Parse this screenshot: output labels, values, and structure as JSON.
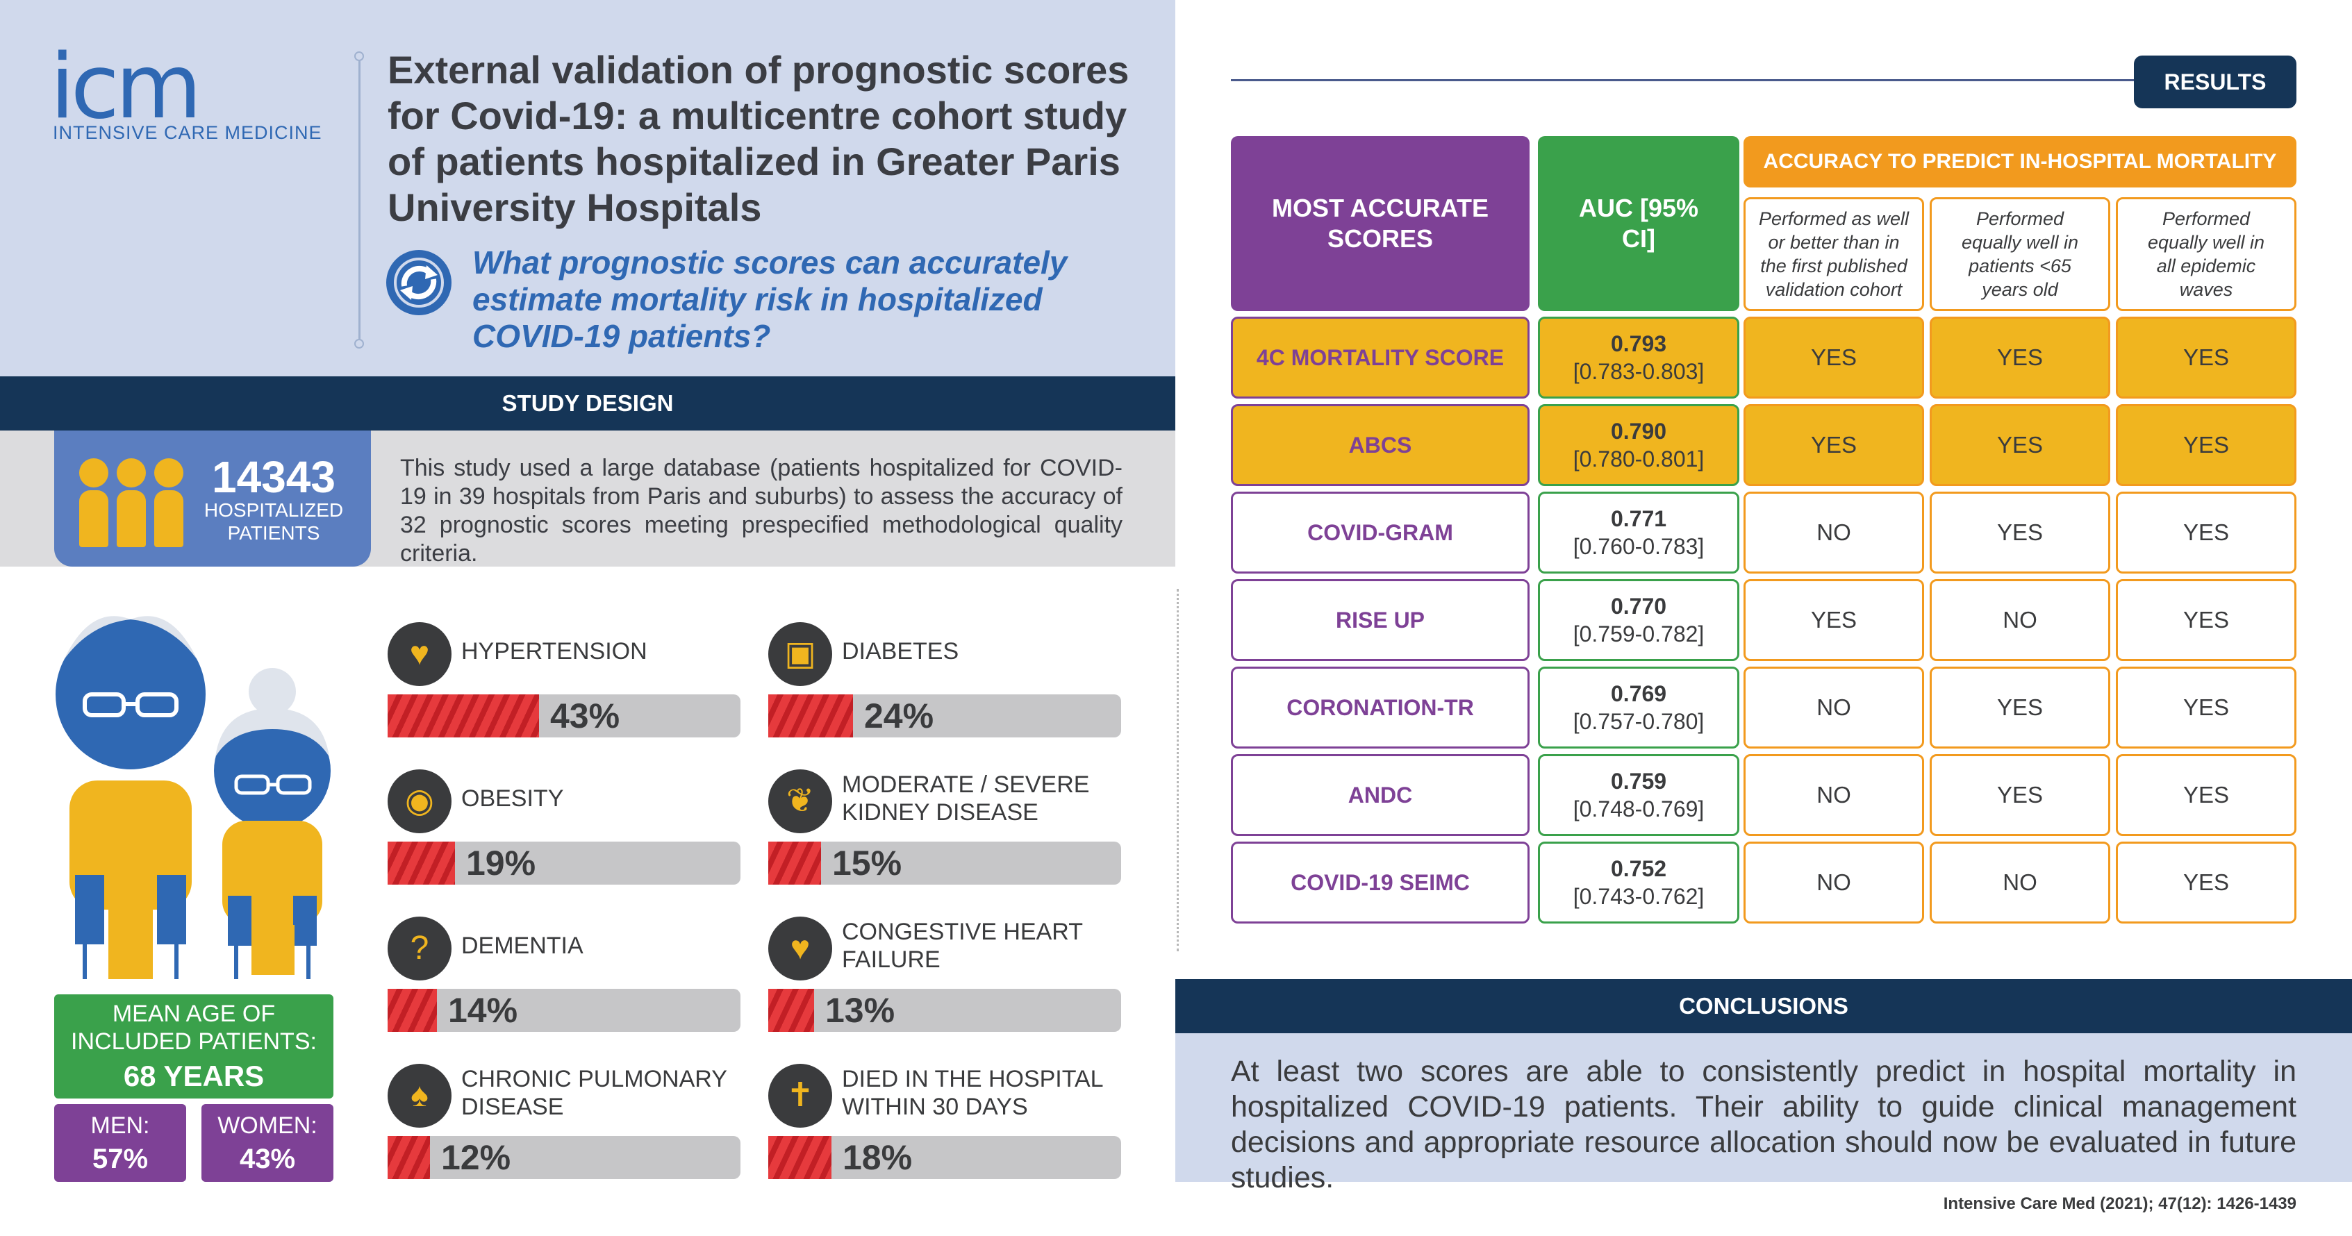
{
  "header": {
    "logo_text": "icm",
    "logo_subtitle": "INTENSIVE CARE MEDICINE",
    "title": "External validation of prognostic scores for Covid-19: a multicentre cohort study of patients hospitalized in Greater Paris University Hospitals",
    "question": "What prognostic scores can accurately estimate mortality risk in hospitalized COVID-19 patients?",
    "question_icon": "refresh-arrows-icon"
  },
  "study_design": {
    "heading": "STUDY DESIGN",
    "patients_count": "14343",
    "patients_label": "HOSPITALIZED PATIENTS",
    "description": "This study used a large database (patients hospitalized for COVID-19 in 39 hospitals from Paris and suburbs) to assess the accuracy of 32 prognostic scores meeting prespecified methodological quality criteria."
  },
  "demographics": {
    "age_label": "MEAN AGE OF INCLUDED PATIENTS:",
    "age_value": "68 YEARS",
    "men_label": "MEN:",
    "men_value": "57%",
    "women_label": "WOMEN:",
    "women_value": "43%"
  },
  "comorbidities": [
    {
      "name": "HYPERTENSION",
      "pct_label": "43%",
      "fraction": 0.43,
      "icon": "heart-pulse-icon"
    },
    {
      "name": "DIABETES",
      "pct_label": "24%",
      "fraction": 0.24,
      "icon": "glucose-meter-icon"
    },
    {
      "name": "OBESITY",
      "pct_label": "19%",
      "fraction": 0.19,
      "icon": "torso-icon"
    },
    {
      "name": "MODERATE / SEVERE KIDNEY DISEASE",
      "pct_label": "15%",
      "fraction": 0.15,
      "icon": "kidney-icon"
    },
    {
      "name": "DEMENTIA",
      "pct_label": "14%",
      "fraction": 0.14,
      "icon": "head-question-icon"
    },
    {
      "name": "CONGESTIVE HEART FAILURE",
      "pct_label": "13%",
      "fraction": 0.13,
      "icon": "heart-icon"
    },
    {
      "name": "CHRONIC PULMONARY DISEASE",
      "pct_label": "12%",
      "fraction": 0.12,
      "icon": "lungs-icon"
    },
    {
      "name": "DIED IN THE HOSPITAL WITHIN 30 DAYS",
      "pct_label": "18%",
      "fraction": 0.18,
      "icon": "cross-icon"
    }
  ],
  "results": {
    "button": "RESULTS",
    "col_scores": "MOST ACCURATE SCORES",
    "col_auc": "AUC [95% CI]",
    "col_accuracy": "ACCURACY TO PREDICT IN-HOSPITAL MORTALITY",
    "sub_cols": [
      "Performed as well or better than in the first published validation cohort",
      "Performed equally well in patients <65 years old",
      "Performed equally well in all epidemic waves"
    ],
    "rows": [
      {
        "name": "4C MORTALITY SCORE",
        "auc": "0.793",
        "ci": "[0.783-0.803]",
        "v": [
          "YES",
          "YES",
          "YES"
        ],
        "highlight": true
      },
      {
        "name": "ABCS",
        "auc": "0.790",
        "ci": "[0.780-0.801]",
        "v": [
          "YES",
          "YES",
          "YES"
        ],
        "highlight": true
      },
      {
        "name": "COVID-GRAM",
        "auc": "0.771",
        "ci": "[0.760-0.783]",
        "v": [
          "NO",
          "YES",
          "YES"
        ],
        "highlight": false
      },
      {
        "name": "RISE UP",
        "auc": "0.770",
        "ci": "[0.759-0.782]",
        "v": [
          "YES",
          "NO",
          "YES"
        ],
        "highlight": false
      },
      {
        "name": "CORONATION-TR",
        "auc": "0.769",
        "ci": "[0.757-0.780]",
        "v": [
          "NO",
          "YES",
          "YES"
        ],
        "highlight": false
      },
      {
        "name": "ANDC",
        "auc": "0.759",
        "ci": "[0.748-0.769]",
        "v": [
          "NO",
          "YES",
          "YES"
        ],
        "highlight": false
      },
      {
        "name": "COVID-19 SEIMC",
        "auc": "0.752",
        "ci": "[0.743-0.762]",
        "v": [
          "NO",
          "NO",
          "YES"
        ],
        "highlight": false
      }
    ]
  },
  "conclusions": {
    "heading": "CONCLUSIONS",
    "text": "At least two scores are able to consistently predict in hospital mortality in hospitalized COVID-19 patients. Their ability to guide clinical management decisions and appropriate resource allocation should now be evaluated in future studies."
  },
  "citation": "Intensive Care Med (2021); 47(12): 1426-1439",
  "colors": {
    "navy": "#153557",
    "blue": "#2f68b3",
    "purple": "#7e4196",
    "green": "#3aa14b",
    "orange": "#f29a1e",
    "yellow": "#f0b51f",
    "red": "#e63a3d",
    "light_blue_bg": "#d0d9ec"
  }
}
